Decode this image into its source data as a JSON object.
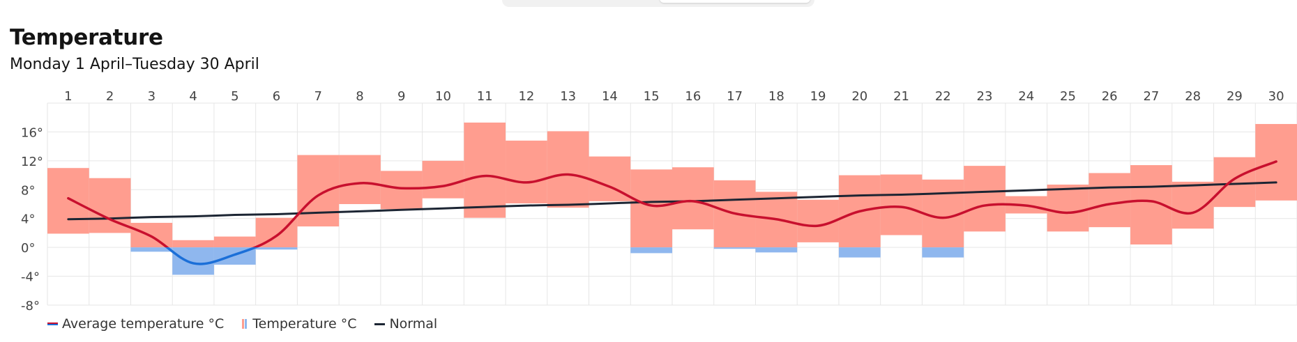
{
  "header": {
    "title": "Temperature",
    "subtitle": "Monday 1 April–Tuesday 30 April"
  },
  "legend": {
    "average_label": "Average temperature °C",
    "temperature_label": "Temperature °C",
    "normal_label": "Normal"
  },
  "colors": {
    "warm_bar": "#ff9d8f",
    "cold_bar": "#8fb7ee",
    "avg_warm": "#c8102e",
    "avg_cold": "#1b6fd8",
    "normal": "#1c2533",
    "grid": "#e6e6e6"
  },
  "chart_data": {
    "type": "bar",
    "title": "Temperature",
    "subtitle": "Monday 1 April–Tuesday 30 April",
    "x": [
      "1",
      "2",
      "3",
      "4",
      "5",
      "6",
      "7",
      "8",
      "9",
      "10",
      "11",
      "12",
      "13",
      "14",
      "15",
      "16",
      "17",
      "18",
      "19",
      "20",
      "21",
      "22",
      "23",
      "24",
      "25",
      "26",
      "27",
      "28",
      "29",
      "30"
    ],
    "y_ticks": [
      "16°",
      "12°",
      "8°",
      "4°",
      "0°",
      "-4°",
      "-8°"
    ],
    "y_tick_values": [
      16,
      12,
      8,
      4,
      0,
      -4,
      -8
    ],
    "ylim": [
      -8,
      20
    ],
    "grid": true,
    "legend_placement": "bottom-left",
    "series": [
      {
        "name": "Temperature °C",
        "kind": "range",
        "min": [
          1.9,
          2.0,
          -0.6,
          -3.8,
          -2.4,
          -0.3,
          2.9,
          6.0,
          5.3,
          6.8,
          4.1,
          6.1,
          5.5,
          6.4,
          -0.8,
          2.5,
          -0.2,
          -0.7,
          0.7,
          -1.4,
          1.7,
          -1.4,
          2.2,
          4.7,
          2.2,
          2.8,
          0.4,
          2.6,
          5.6,
          6.5
        ],
        "max": [
          11.0,
          9.6,
          3.4,
          1.0,
          1.5,
          4.1,
          12.8,
          12.8,
          10.6,
          12.0,
          17.3,
          14.8,
          16.1,
          12.6,
          10.8,
          11.1,
          9.3,
          7.7,
          6.6,
          10.0,
          10.1,
          9.4,
          11.3,
          7.1,
          8.7,
          10.3,
          11.4,
          9.1,
          12.5,
          17.1
        ]
      },
      {
        "name": "Average temperature °C",
        "kind": "line",
        "values": [
          6.8,
          3.9,
          1.5,
          -2.2,
          -1.0,
          1.6,
          7.2,
          8.9,
          8.2,
          8.5,
          9.9,
          9.0,
          10.1,
          8.4,
          5.8,
          6.4,
          4.7,
          3.9,
          3.0,
          5.0,
          5.6,
          4.1,
          5.8,
          5.8,
          4.8,
          6.0,
          6.4,
          4.8,
          9.5,
          11.9
        ]
      },
      {
        "name": "Normal",
        "kind": "line",
        "values": [
          3.9,
          4.0,
          4.2,
          4.3,
          4.5,
          4.6,
          4.8,
          5.0,
          5.2,
          5.4,
          5.6,
          5.8,
          5.9,
          6.1,
          6.3,
          6.4,
          6.6,
          6.8,
          7.0,
          7.2,
          7.3,
          7.5,
          7.7,
          7.9,
          8.1,
          8.3,
          8.4,
          8.6,
          8.8,
          9.0
        ]
      }
    ]
  }
}
